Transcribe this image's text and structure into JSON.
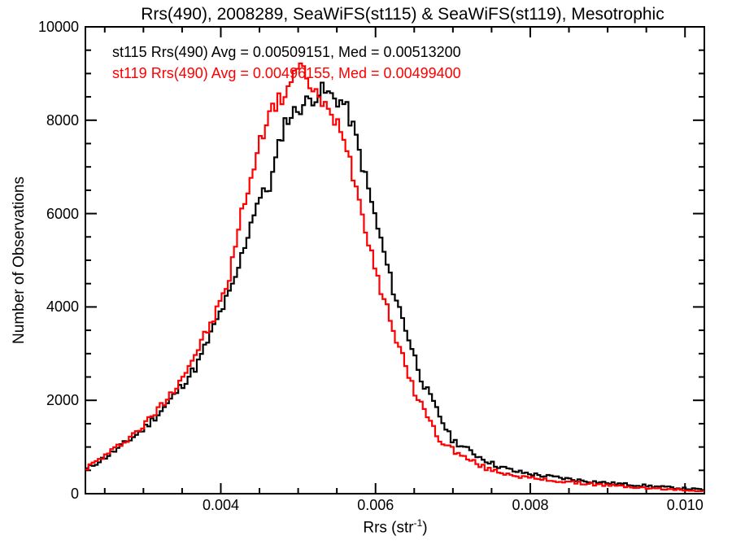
{
  "title": "Rrs(490), 2008289, SeaWiFS(st115) & SeaWiFS(st119), Mesotrophic",
  "legend": [
    {
      "label": "st115 Rrs(490) Avg = 0.00509151, Med = 0.00513200",
      "color": "#000000"
    },
    {
      "label": "st119 Rrs(490) Avg = 0.00496155, Med = 0.00499400",
      "color": "#ff0000"
    }
  ],
  "chart_data": {
    "type": "line",
    "subtype": "step-histogram",
    "title": "Rrs(490), 2008289, SeaWiFS(st115) & SeaWiFS(st119), Mesotrophic",
    "xlabel": "Rrs (str⁻¹)",
    "xlabel_parts": {
      "prefix": "Rrs (str",
      "sup": "-1",
      "suffix": ")"
    },
    "ylabel": "Number of Observations",
    "xlim": [
      0.00225,
      0.01025
    ],
    "ylim": [
      0,
      10000
    ],
    "grid": false,
    "legend_position": "top-left-inside",
    "bin_width": 4e-05,
    "x_major_ticks": [
      {
        "v": 0.004,
        "label": "0.004"
      },
      {
        "v": 0.006,
        "label": "0.006"
      },
      {
        "v": 0.008,
        "label": "0.008"
      },
      {
        "v": 0.01,
        "label": "0.010"
      }
    ],
    "x_minor_ticks": [
      0.0025,
      0.003,
      0.0035,
      0.0045,
      0.005,
      0.0055,
      0.0065,
      0.007,
      0.0075,
      0.0085,
      0.009,
      0.0095
    ],
    "y_major_ticks": [
      {
        "v": 0,
        "label": "0"
      },
      {
        "v": 2000,
        "label": "2000"
      },
      {
        "v": 4000,
        "label": "4000"
      },
      {
        "v": 6000,
        "label": "6000"
      },
      {
        "v": 8000,
        "label": "8000"
      },
      {
        "v": 10000,
        "label": "10000"
      }
    ],
    "y_minor_ticks": [
      500,
      1000,
      1500,
      2500,
      3000,
      3500,
      4500,
      5000,
      5500,
      6500,
      7000,
      7500,
      8500,
      9000,
      9500
    ],
    "series": [
      {
        "name": "st115",
        "color": "#000000",
        "avg": 0.00509151,
        "med": 0.005132,
        "peak_value": 8640,
        "peak_x": 0.0053,
        "anchors_x": [
          0.00225,
          0.0026,
          0.003,
          0.0033,
          0.00369,
          0.004,
          0.00417,
          0.00446,
          0.00464,
          0.00482,
          0.005,
          0.0052,
          0.0053,
          0.0056,
          0.00572,
          0.00595,
          0.00621,
          0.00661,
          0.00698,
          0.0073,
          0.00755,
          0.0078,
          0.0081,
          0.00857,
          0.009,
          0.0095,
          0.0099,
          0.01025
        ],
        "anchors_y": [
          510,
          880,
          1380,
          1900,
          2740,
          3900,
          4485,
          6230,
          6610,
          7950,
          8250,
          8500,
          8640,
          8350,
          7800,
          6230,
          4485,
          2390,
          1170,
          830,
          610,
          480,
          400,
          300,
          230,
          170,
          120,
          85
        ],
        "noise_seed": 11,
        "noise_scale": 2.0
      },
      {
        "name": "st119",
        "color": "#ff0000",
        "avg": 0.00496155,
        "med": 0.004994,
        "peak_value": 9110,
        "peak_x": 0.00498,
        "anchors_x": [
          0.00225,
          0.0026,
          0.003,
          0.0033,
          0.00359,
          0.0039,
          0.00409,
          0.0043,
          0.00443,
          0.0046,
          0.0048,
          0.00498,
          0.00506,
          0.00515,
          0.0053,
          0.00558,
          0.0058,
          0.00605,
          0.00645,
          0.00682,
          0.0071,
          0.00745,
          0.0077,
          0.008,
          0.0085,
          0.009,
          0.0095,
          0.0099,
          0.01025
        ],
        "anchors_y": [
          535,
          920,
          1450,
          2020,
          2740,
          3720,
          4485,
          6230,
          7015,
          8100,
          8500,
          9110,
          9040,
          8800,
          8350,
          7800,
          6230,
          4485,
          2390,
          1170,
          820,
          525,
          430,
          330,
          245,
          180,
          120,
          85,
          60
        ],
        "noise_seed": 97,
        "noise_scale": 2.0
      }
    ]
  }
}
